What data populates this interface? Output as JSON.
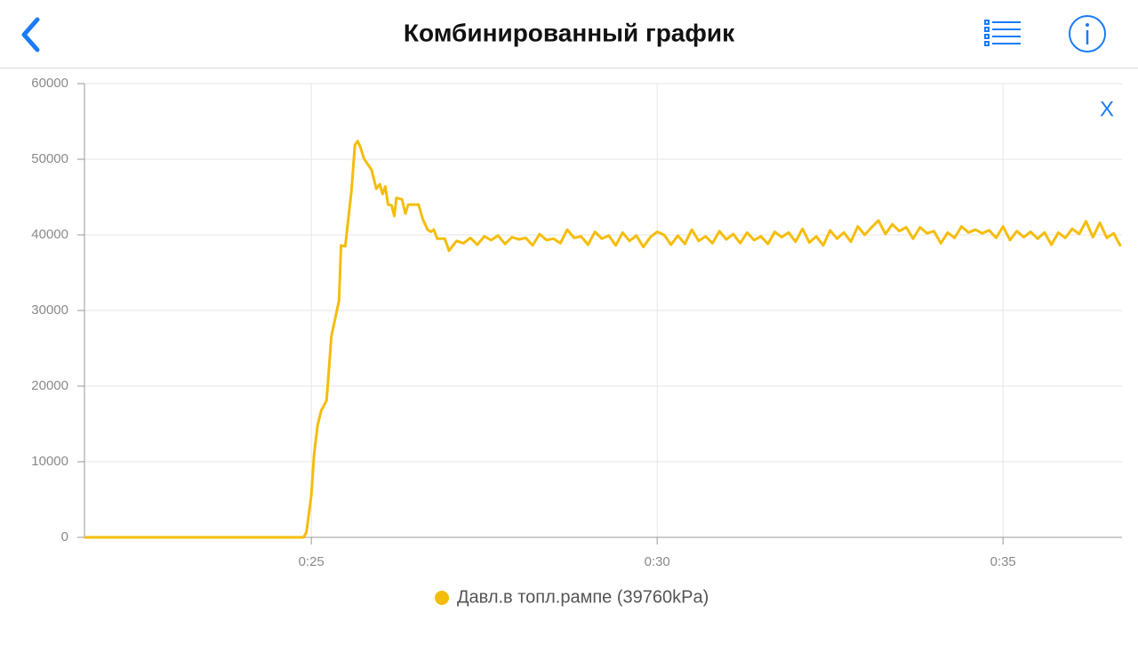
{
  "header": {
    "title": "Комбинированный график"
  },
  "close_label": "X",
  "chart_data": {
    "type": "line",
    "x": [
      21.72,
      24.89,
      24.93,
      25.0,
      25.04,
      25.09,
      25.14,
      25.22,
      25.25,
      25.29,
      25.4,
      25.43,
      25.49,
      25.58,
      25.63,
      25.67,
      25.71,
      25.76,
      25.87,
      25.94,
      25.99,
      26.03,
      26.07,
      26.11,
      26.16,
      26.2,
      26.23,
      26.31,
      26.36,
      26.4,
      26.55,
      26.61,
      26.68,
      26.73,
      26.77,
      26.82,
      26.93,
      26.99,
      27.1,
      27.2,
      27.3,
      27.4,
      27.5,
      27.6,
      27.7,
      27.8,
      27.9,
      28.0,
      28.1,
      28.2,
      28.3,
      28.4,
      28.5,
      28.6,
      28.7,
      28.8,
      28.9,
      29.0,
      29.1,
      29.2,
      29.3,
      29.4,
      29.5,
      29.6,
      29.7,
      29.8,
      29.9,
      30.0,
      30.1,
      30.2,
      30.3,
      30.4,
      30.5,
      30.6,
      30.7,
      30.8,
      30.9,
      31.0,
      31.1,
      31.2,
      31.3,
      31.4,
      31.5,
      31.6,
      31.7,
      31.8,
      31.9,
      32.0,
      32.1,
      32.2,
      32.3,
      32.4,
      32.5,
      32.6,
      32.7,
      32.8,
      32.9,
      33.0,
      33.1,
      33.2,
      33.3,
      33.4,
      33.5,
      33.6,
      33.7,
      33.8,
      33.9,
      34.0,
      34.1,
      34.2,
      34.3,
      34.4,
      34.5,
      34.6,
      34.7,
      34.8,
      34.9,
      35.0,
      35.1,
      35.2,
      35.3,
      35.4,
      35.5,
      35.6,
      35.7,
      35.8,
      35.9,
      36.0,
      36.1,
      36.2,
      36.3,
      36.4,
      36.5,
      36.6,
      36.7
    ],
    "series": [
      {
        "name": "Давл.в топл.рампе (39760kPa)",
        "color": "#f5bd0b",
        "values": [
          0,
          0,
          700,
          5600,
          11000,
          14800,
          16700,
          18100,
          21600,
          26600,
          31300,
          38600,
          38500,
          45800,
          51900,
          52400,
          51600,
          50100,
          48600,
          46100,
          46700,
          45400,
          46400,
          44000,
          43900,
          42500,
          44900,
          44700,
          42800,
          44000,
          44000,
          42100,
          40700,
          40400,
          40700,
          39500,
          39500,
          37900,
          39200,
          38900,
          39600,
          38700,
          39800,
          39300,
          39900,
          38800,
          39700,
          39400,
          39600,
          38600,
          40100,
          39300,
          39500,
          38900,
          40700,
          39600,
          39800,
          38700,
          40400,
          39500,
          39900,
          38600,
          40300,
          39200,
          39900,
          38400,
          39700,
          40400,
          40000,
          38700,
          39900,
          38800,
          40700,
          39200,
          39800,
          38900,
          40500,
          39400,
          40100,
          38900,
          40300,
          39300,
          39800,
          38800,
          40400,
          39700,
          40300,
          39100,
          40800,
          39000,
          39800,
          38600,
          40600,
          39500,
          40300,
          39100,
          41100,
          40000,
          41000,
          41900,
          40100,
          41400,
          40500,
          41000,
          39500,
          41000,
          40200,
          40500,
          38900,
          40300,
          39600,
          41100,
          40300,
          40700,
          40200,
          40600,
          39600,
          41100,
          39300,
          40500,
          39700,
          40400,
          39500,
          40300,
          38700,
          40300,
          39600,
          40800,
          40100,
          41800,
          39700,
          41600,
          39600,
          40200,
          38500
        ]
      }
    ],
    "xlim": [
      21.72,
      36.72
    ],
    "xticks": [
      {
        "value": 25,
        "label": "0:25"
      },
      {
        "value": 30,
        "label": "0:30"
      },
      {
        "value": 35,
        "label": "0:35"
      }
    ],
    "ylim": [
      0,
      60000
    ],
    "yticks": [
      0,
      10000,
      20000,
      30000,
      40000,
      50000,
      60000
    ],
    "grid": true
  }
}
